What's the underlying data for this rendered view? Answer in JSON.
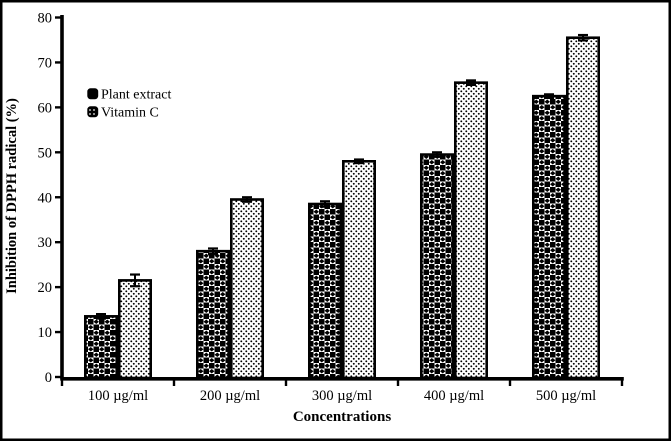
{
  "figure": {
    "background": "#ffffff",
    "border_color": "#000000",
    "ink_color": "#000000"
  },
  "chart_data": {
    "type": "bar",
    "title": "",
    "categories": [
      "100 µg/ml",
      "200 µg/ml",
      "300 µg/ml",
      "400 µg/ml",
      "500 µg/ml"
    ],
    "series": [
      {
        "name": "Plant extract",
        "pattern": "checker-weave",
        "color": "#000000",
        "values": [
          13.5,
          28,
          38.5,
          49.5,
          62.5
        ],
        "errors": [
          0.5,
          0.6,
          0.6,
          0.5,
          0.4
        ]
      },
      {
        "name": "Vitamin C",
        "pattern": "dot-grid",
        "color": "#000000",
        "values": [
          21.5,
          39.5,
          48,
          65.5,
          75.5
        ],
        "errors": [
          1.3,
          0.5,
          0.4,
          0.5,
          0.6
        ]
      }
    ],
    "xlabel": "Concentrations",
    "ylabel": "Inhibition of DPPH radical (%)",
    "ylim": [
      0,
      80
    ],
    "yticks": [
      0,
      10,
      20,
      30,
      40,
      50,
      60,
      70,
      80
    ],
    "grid": false,
    "error_bars": true,
    "legend_position": "inside-upper-left"
  }
}
